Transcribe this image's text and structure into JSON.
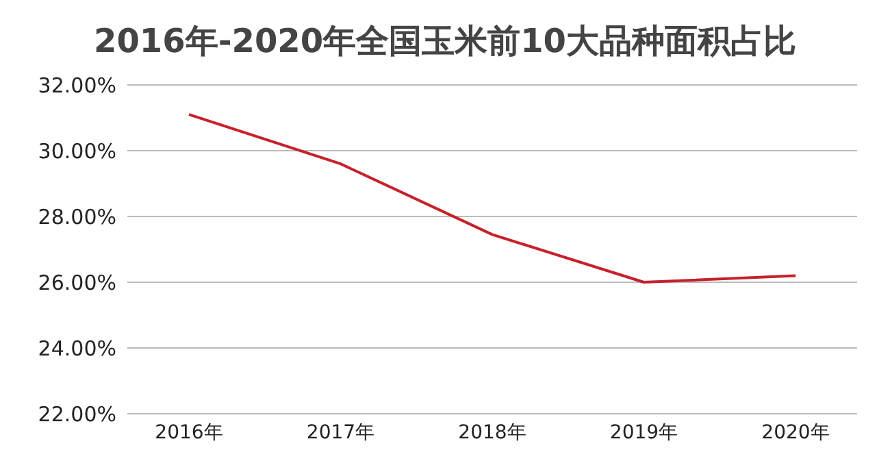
{
  "chart_data": {
    "type": "line",
    "title": "2016年-2020年全国玉米前10大品种面积占比",
    "categories": [
      "2016年",
      "2017年",
      "2018年",
      "2019年",
      "2020年"
    ],
    "series": [
      {
        "color": "#c8202a",
        "values": [
          31.1,
          29.6,
          27.45,
          26.0,
          26.2
        ]
      }
    ],
    "ylim": [
      22,
      32
    ],
    "yticks": [
      {
        "value": 22,
        "label": "22.00%"
      },
      {
        "value": 24,
        "label": "24.00%"
      },
      {
        "value": 26,
        "label": "26.00%"
      },
      {
        "value": 28,
        "label": "28.00%"
      },
      {
        "value": 30,
        "label": "30.00%"
      },
      {
        "value": 32,
        "label": "32.00%"
      }
    ],
    "grid": "y",
    "legend": false,
    "marker": "none",
    "line_style": "solid"
  }
}
